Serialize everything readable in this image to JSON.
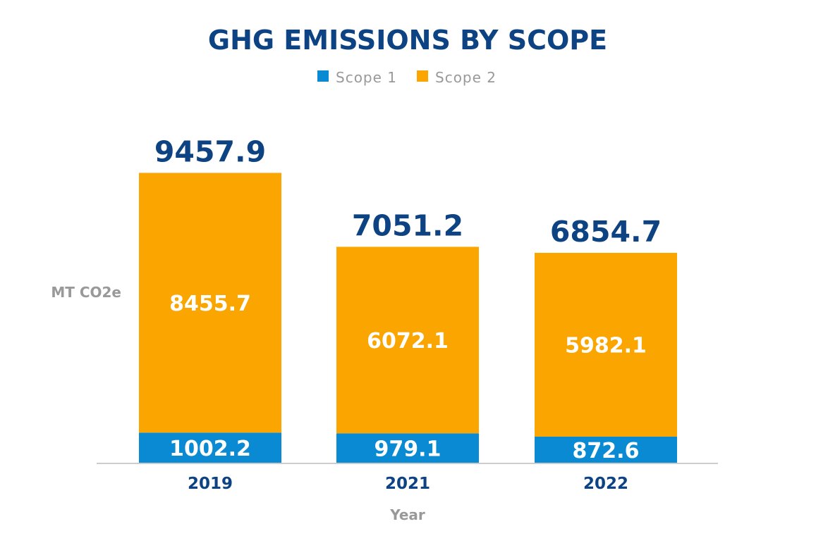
{
  "chart_data": {
    "type": "bar",
    "stacked": true,
    "title": "GHG EMISSIONS BY SCOPE",
    "xlabel": "Year",
    "ylabel": "MT CO2e",
    "categories": [
      "2019",
      "2021",
      "2022"
    ],
    "series": [
      {
        "name": "Scope 1",
        "color": "#0a8ad2",
        "values": [
          1002.2,
          979.1,
          872.6
        ],
        "labels": [
          "1002.2",
          "979.1",
          "872.6"
        ]
      },
      {
        "name": "Scope 2",
        "color": "#faa500",
        "values": [
          8455.7,
          6072.1,
          5982.1
        ],
        "labels": [
          "8455.7",
          "6072.1",
          "5982.1"
        ]
      }
    ],
    "totals": [
      9457.9,
      7051.2,
      6854.7
    ],
    "total_labels": [
      "9457.9",
      "7051.2",
      "6854.7"
    ],
    "ylim": [
      0,
      10500
    ],
    "grid": false,
    "legend": "top-center",
    "colors": {
      "title": "#0d4382",
      "axis_text": "#999999",
      "tick_text": "#0d4382",
      "baseline": "#cccccc",
      "segment_label": "#ffffff"
    }
  }
}
